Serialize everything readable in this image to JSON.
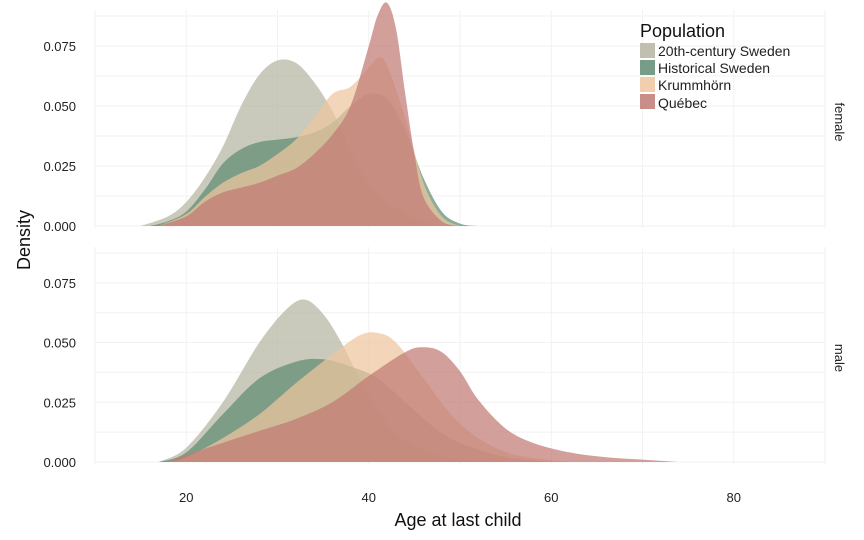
{
  "chart_data": {
    "type": "area",
    "xlabel": "Age at last child",
    "ylabel": "Density",
    "xlim": [
      10,
      90
    ],
    "ylim": [
      0,
      0.09
    ],
    "x_ticks": [
      20,
      40,
      60,
      80
    ],
    "y_ticks": [
      0,
      0.025,
      0.05,
      0.075
    ],
    "y_tick_labels": [
      "0.000",
      "0.025",
      "0.050",
      "0.075"
    ],
    "grid": true,
    "legend": {
      "title": "Population",
      "placement": "top-right",
      "entries": [
        {
          "name": "20th-century Sweden",
          "color": "#b6b5a2"
        },
        {
          "name": "Historical Sweden",
          "color": "#5f8c73"
        },
        {
          "name": "Krummhörn",
          "color": "#efc69f"
        },
        {
          "name": "Québec",
          "color": "#c07a74"
        }
      ]
    },
    "panels": [
      {
        "label": "female",
        "series": [
          {
            "name": "20th-century Sweden",
            "points": [
              [
                15,
                0
              ],
              [
                18,
                0.004
              ],
              [
                20,
                0.01
              ],
              [
                22,
                0.02
              ],
              [
                24,
                0.033
              ],
              [
                26,
                0.05
              ],
              [
                28,
                0.063
              ],
              [
                30,
                0.069
              ],
              [
                32,
                0.068
              ],
              [
                34,
                0.06
              ],
              [
                36,
                0.048
              ],
              [
                38,
                0.032
              ],
              [
                40,
                0.018
              ],
              [
                42,
                0.01
              ],
              [
                44,
                0.005
              ],
              [
                46,
                0.002
              ],
              [
                48,
                0
              ]
            ]
          },
          {
            "name": "Historical Sweden",
            "points": [
              [
                16,
                0
              ],
              [
                18,
                0.002
              ],
              [
                20,
                0.006
              ],
              [
                22,
                0.015
              ],
              [
                24,
                0.026
              ],
              [
                26,
                0.032
              ],
              [
                28,
                0.035
              ],
              [
                30,
                0.036
              ],
              [
                32,
                0.037
              ],
              [
                34,
                0.039
              ],
              [
                36,
                0.043
              ],
              [
                38,
                0.05
              ],
              [
                40,
                0.055
              ],
              [
                42,
                0.053
              ],
              [
                44,
                0.04
              ],
              [
                46,
                0.02
              ],
              [
                48,
                0.006
              ],
              [
                50,
                0.001
              ],
              [
                52,
                0
              ]
            ]
          },
          {
            "name": "Krummhörn",
            "points": [
              [
                17,
                0
              ],
              [
                20,
                0.005
              ],
              [
                22,
                0.012
              ],
              [
                24,
                0.018
              ],
              [
                26,
                0.022
              ],
              [
                28,
                0.025
              ],
              [
                30,
                0.03
              ],
              [
                32,
                0.036
              ],
              [
                34,
                0.045
              ],
              [
                36,
                0.055
              ],
              [
                38,
                0.058
              ],
              [
                40,
                0.066
              ],
              [
                41,
                0.07
              ],
              [
                42,
                0.067
              ],
              [
                44,
                0.045
              ],
              [
                46,
                0.018
              ],
              [
                48,
                0.004
              ],
              [
                50,
                0
              ]
            ]
          },
          {
            "name": "Québec",
            "points": [
              [
                17,
                0
              ],
              [
                20,
                0.004
              ],
              [
                22,
                0.01
              ],
              [
                24,
                0.014
              ],
              [
                26,
                0.016
              ],
              [
                28,
                0.018
              ],
              [
                30,
                0.021
              ],
              [
                32,
                0.024
              ],
              [
                34,
                0.03
              ],
              [
                36,
                0.038
              ],
              [
                38,
                0.05
              ],
              [
                40,
                0.075
              ],
              [
                41,
                0.088
              ],
              [
                42,
                0.093
              ],
              [
                43,
                0.082
              ],
              [
                44,
                0.055
              ],
              [
                45,
                0.03
              ],
              [
                46,
                0.012
              ],
              [
                48,
                0.002
              ],
              [
                50,
                0
              ]
            ]
          }
        ]
      },
      {
        "label": "male",
        "series": [
          {
            "name": "20th-century Sweden",
            "points": [
              [
                17,
                0
              ],
              [
                20,
                0.006
              ],
              [
                24,
                0.025
              ],
              [
                28,
                0.05
              ],
              [
                31,
                0.064
              ],
              [
                33,
                0.068
              ],
              [
                35,
                0.062
              ],
              [
                37,
                0.05
              ],
              [
                39,
                0.035
              ],
              [
                41,
                0.022
              ],
              [
                43,
                0.012
              ],
              [
                46,
                0.005
              ],
              [
                50,
                0.001
              ],
              [
                54,
                0
              ]
            ]
          },
          {
            "name": "Historical Sweden",
            "points": [
              [
                17,
                0
              ],
              [
                20,
                0.004
              ],
              [
                24,
                0.02
              ],
              [
                28,
                0.035
              ],
              [
                32,
                0.042
              ],
              [
                35,
                0.043
              ],
              [
                38,
                0.04
              ],
              [
                41,
                0.035
              ],
              [
                44,
                0.025
              ],
              [
                47,
                0.015
              ],
              [
                50,
                0.008
              ],
              [
                55,
                0.002
              ],
              [
                60,
                0
              ]
            ]
          },
          {
            "name": "Krummhörn",
            "points": [
              [
                18,
                0
              ],
              [
                20,
                0.002
              ],
              [
                24,
                0.01
              ],
              [
                28,
                0.02
              ],
              [
                32,
                0.033
              ],
              [
                36,
                0.045
              ],
              [
                39,
                0.053
              ],
              [
                41,
                0.054
              ],
              [
                43,
                0.05
              ],
              [
                46,
                0.035
              ],
              [
                49,
                0.02
              ],
              [
                52,
                0.01
              ],
              [
                56,
                0.003
              ],
              [
                62,
                0
              ]
            ]
          },
          {
            "name": "Québec",
            "points": [
              [
                18,
                0
              ],
              [
                20,
                0.003
              ],
              [
                24,
                0.008
              ],
              [
                28,
                0.013
              ],
              [
                32,
                0.018
              ],
              [
                36,
                0.025
              ],
              [
                40,
                0.036
              ],
              [
                44,
                0.046
              ],
              [
                46,
                0.048
              ],
              [
                48,
                0.046
              ],
              [
                50,
                0.038
              ],
              [
                52,
                0.026
              ],
              [
                55,
                0.014
              ],
              [
                58,
                0.008
              ],
              [
                62,
                0.004
              ],
              [
                66,
                0.002
              ],
              [
                70,
                0.001
              ],
              [
                74,
                0
              ]
            ]
          }
        ]
      }
    ]
  }
}
